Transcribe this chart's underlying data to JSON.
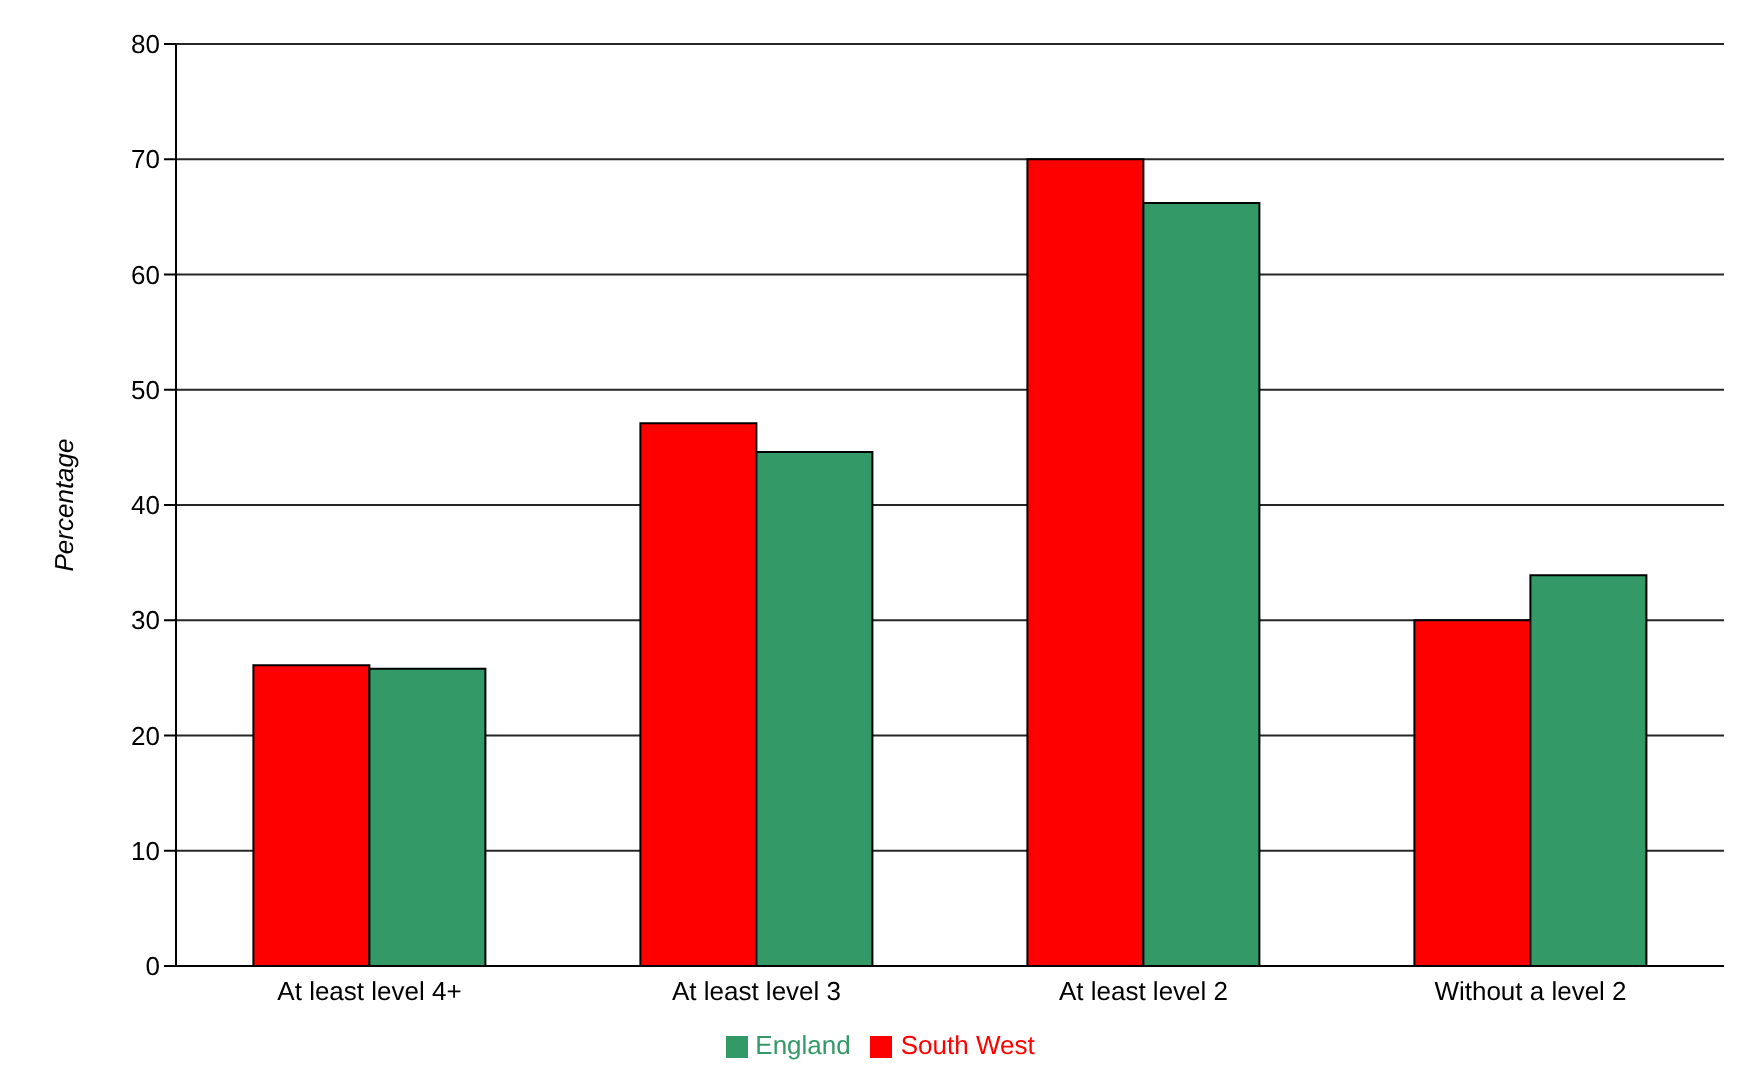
{
  "chart_data": {
    "type": "bar",
    "ylabel": "Percentage",
    "categories": [
      "At least level 4+",
      "At least level 3",
      "At least level 2",
      "Without a level 2"
    ],
    "series": [
      {
        "name": "South West",
        "color": "#ff0000",
        "values": [
          26.1,
          47.1,
          70,
          30
        ]
      },
      {
        "name": "England",
        "color": "#339966",
        "values": [
          25.8,
          44.6,
          66.2,
          33.9
        ]
      }
    ],
    "ylim": [
      0,
      80
    ],
    "yticks": [
      0,
      10,
      20,
      30,
      40,
      50,
      60,
      70,
      80
    ],
    "grid": "y",
    "legend": "bottom"
  }
}
